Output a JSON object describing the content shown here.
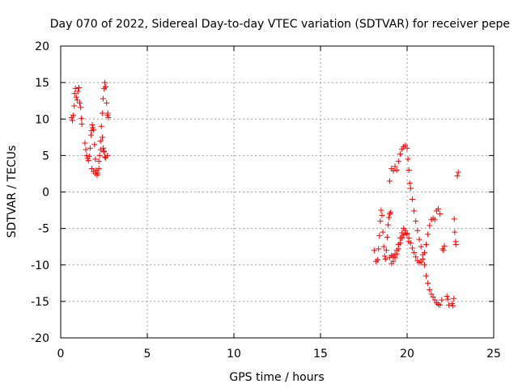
{
  "chart_data": {
    "type": "scatter",
    "title": "Day 070 of 2022, Sidereal Day-to-day VTEC variation (SDTVAR) for receiver pepe",
    "xlabel": "GPS time / hours",
    "ylabel": "SDTVAR / TECUs",
    "xlim": [
      0,
      25
    ],
    "ylim": [
      -20,
      20
    ],
    "xticks": [
      0,
      5,
      10,
      15,
      20,
      25
    ],
    "yticks": [
      -20,
      -15,
      -10,
      -5,
      0,
      5,
      10,
      15,
      20
    ],
    "grid": true,
    "marker": "+",
    "color": "#ff0000",
    "series": [
      {
        "points": [
          [
            0.62,
            10.2
          ],
          [
            0.68,
            9.8
          ],
          [
            0.72,
            10.5
          ],
          [
            0.78,
            11.8
          ],
          [
            0.8,
            13.5
          ],
          [
            0.85,
            14.2
          ],
          [
            0.9,
            13.0
          ],
          [
            0.95,
            12.6
          ],
          [
            1.0,
            13.8
          ],
          [
            1.05,
            14.3
          ],
          [
            1.1,
            12.2
          ],
          [
            1.15,
            11.6
          ],
          [
            1.2,
            10.1
          ],
          [
            1.22,
            9.3
          ],
          [
            1.4,
            6.7
          ],
          [
            1.45,
            5.8
          ],
          [
            1.5,
            5.0
          ],
          [
            1.55,
            4.6
          ],
          [
            1.6,
            4.3
          ],
          [
            1.65,
            4.9
          ],
          [
            1.7,
            6.0
          ],
          [
            1.75,
            7.8
          ],
          [
            1.78,
            8.4
          ],
          [
            1.82,
            9.2
          ],
          [
            1.85,
            8.8
          ],
          [
            1.9,
            8.5
          ],
          [
            1.95,
            6.5
          ],
          [
            2.0,
            4.5
          ],
          [
            2.05,
            3.0
          ],
          [
            2.1,
            2.3
          ],
          [
            2.15,
            2.6
          ],
          [
            2.2,
            3.2
          ],
          [
            2.25,
            5.0
          ],
          [
            2.3,
            7.0
          ],
          [
            2.35,
            9.0
          ],
          [
            2.4,
            7.5
          ],
          [
            2.45,
            6.0
          ],
          [
            2.5,
            5.5
          ],
          [
            2.55,
            4.8
          ],
          [
            1.8,
            3.2
          ],
          [
            1.9,
            2.8
          ],
          [
            2.0,
            2.5
          ],
          [
            2.2,
            4.2
          ],
          [
            2.3,
            5.8
          ],
          [
            2.4,
            10.8
          ],
          [
            2.45,
            12.8
          ],
          [
            2.5,
            14.2
          ],
          [
            2.55,
            15.0
          ],
          [
            2.6,
            14.4
          ],
          [
            2.65,
            12.2
          ],
          [
            2.7,
            10.5
          ],
          [
            2.72,
            10.8
          ],
          [
            2.75,
            10.2
          ],
          [
            2.7,
            5.0
          ],
          [
            2.6,
            4.7
          ],
          [
            2.5,
            5.6
          ],
          [
            18.1,
            -8.0
          ],
          [
            18.2,
            -9.5
          ],
          [
            18.3,
            -9.3
          ],
          [
            18.35,
            -7.8
          ],
          [
            18.4,
            -6.0
          ],
          [
            18.45,
            -4.0
          ],
          [
            18.5,
            -2.5
          ],
          [
            18.55,
            -3.2
          ],
          [
            18.6,
            -5.5
          ],
          [
            18.65,
            -7.5
          ],
          [
            18.7,
            -8.8
          ],
          [
            18.75,
            -9.2
          ],
          [
            18.8,
            -8.0
          ],
          [
            18.85,
            -6.2
          ],
          [
            18.9,
            -4.5
          ],
          [
            18.95,
            -3.5
          ],
          [
            19.0,
            -3.0
          ],
          [
            19.05,
            -2.8
          ],
          [
            19.1,
            -9.8
          ],
          [
            19.2,
            -9.5
          ],
          [
            19.3,
            -9.0
          ],
          [
            19.4,
            -8.5
          ],
          [
            19.5,
            -7.8
          ],
          [
            19.6,
            -7.0
          ],
          [
            19.7,
            -6.3
          ],
          [
            19.8,
            -5.9
          ],
          [
            19.9,
            -5.6
          ],
          [
            20.0,
            -5.8
          ],
          [
            20.1,
            -6.3
          ],
          [
            20.2,
            -7.0
          ],
          [
            20.3,
            -7.7
          ],
          [
            20.4,
            -8.3
          ],
          [
            20.5,
            -8.9
          ],
          [
            20.6,
            -9.4
          ],
          [
            20.7,
            -9.7
          ],
          [
            20.8,
            -9.6
          ],
          [
            20.9,
            -9.2
          ],
          [
            21.0,
            -8.3
          ],
          [
            21.1,
            -7.2
          ],
          [
            21.2,
            -5.8
          ],
          [
            21.3,
            -4.6
          ],
          [
            21.4,
            -3.8
          ],
          [
            21.5,
            -3.6
          ],
          [
            21.6,
            -3.8
          ],
          [
            21.7,
            -2.6
          ],
          [
            21.8,
            -2.3
          ],
          [
            21.9,
            -3.0
          ],
          [
            19.0,
            1.5
          ],
          [
            19.1,
            3.2
          ],
          [
            19.2,
            2.9
          ],
          [
            19.3,
            3.5
          ],
          [
            19.4,
            3.0
          ],
          [
            19.5,
            4.2
          ],
          [
            19.6,
            5.2
          ],
          [
            19.7,
            5.9
          ],
          [
            19.8,
            6.2
          ],
          [
            19.9,
            6.4
          ],
          [
            20.0,
            6.0
          ],
          [
            20.05,
            4.5
          ],
          [
            20.1,
            3.0
          ],
          [
            19.0,
            -9.0
          ],
          [
            19.1,
            -8.7
          ],
          [
            19.2,
            -8.8
          ],
          [
            19.3,
            -8.5
          ],
          [
            19.4,
            -8.0
          ],
          [
            19.5,
            -7.2
          ],
          [
            19.6,
            -6.3
          ],
          [
            19.7,
            -5.6
          ],
          [
            19.8,
            -5.0
          ],
          [
            19.9,
            -5.3
          ],
          [
            20.0,
            -5.7
          ],
          [
            20.1,
            -6.8
          ],
          [
            20.15,
            1.2
          ],
          [
            20.2,
            0.5
          ],
          [
            20.3,
            -1.0
          ],
          [
            20.4,
            -2.6
          ],
          [
            20.5,
            -4.0
          ],
          [
            20.6,
            -5.3
          ],
          [
            20.7,
            -6.5
          ],
          [
            20.8,
            -7.5
          ],
          [
            20.9,
            -8.6
          ],
          [
            21.0,
            -10.0
          ],
          [
            21.1,
            -11.5
          ],
          [
            21.2,
            -12.5
          ],
          [
            21.3,
            -13.4
          ],
          [
            21.4,
            -14.0
          ],
          [
            21.5,
            -14.4
          ],
          [
            21.6,
            -14.8
          ],
          [
            21.7,
            -15.2
          ],
          [
            21.8,
            -15.4
          ],
          [
            21.9,
            -15.5
          ],
          [
            22.0,
            -14.8
          ],
          [
            22.05,
            -7.8
          ],
          [
            22.1,
            -8.0
          ],
          [
            22.15,
            -7.4
          ],
          [
            22.3,
            -14.3
          ],
          [
            22.35,
            -14.7
          ],
          [
            22.4,
            -15.5
          ],
          [
            22.6,
            -15.3
          ],
          [
            22.65,
            -15.6
          ],
          [
            22.7,
            -14.6
          ],
          [
            22.72,
            -3.7
          ],
          [
            22.75,
            -5.5
          ],
          [
            22.8,
            -6.8
          ],
          [
            22.82,
            -7.2
          ],
          [
            22.9,
            2.2
          ],
          [
            22.95,
            2.7
          ]
        ]
      }
    ]
  }
}
